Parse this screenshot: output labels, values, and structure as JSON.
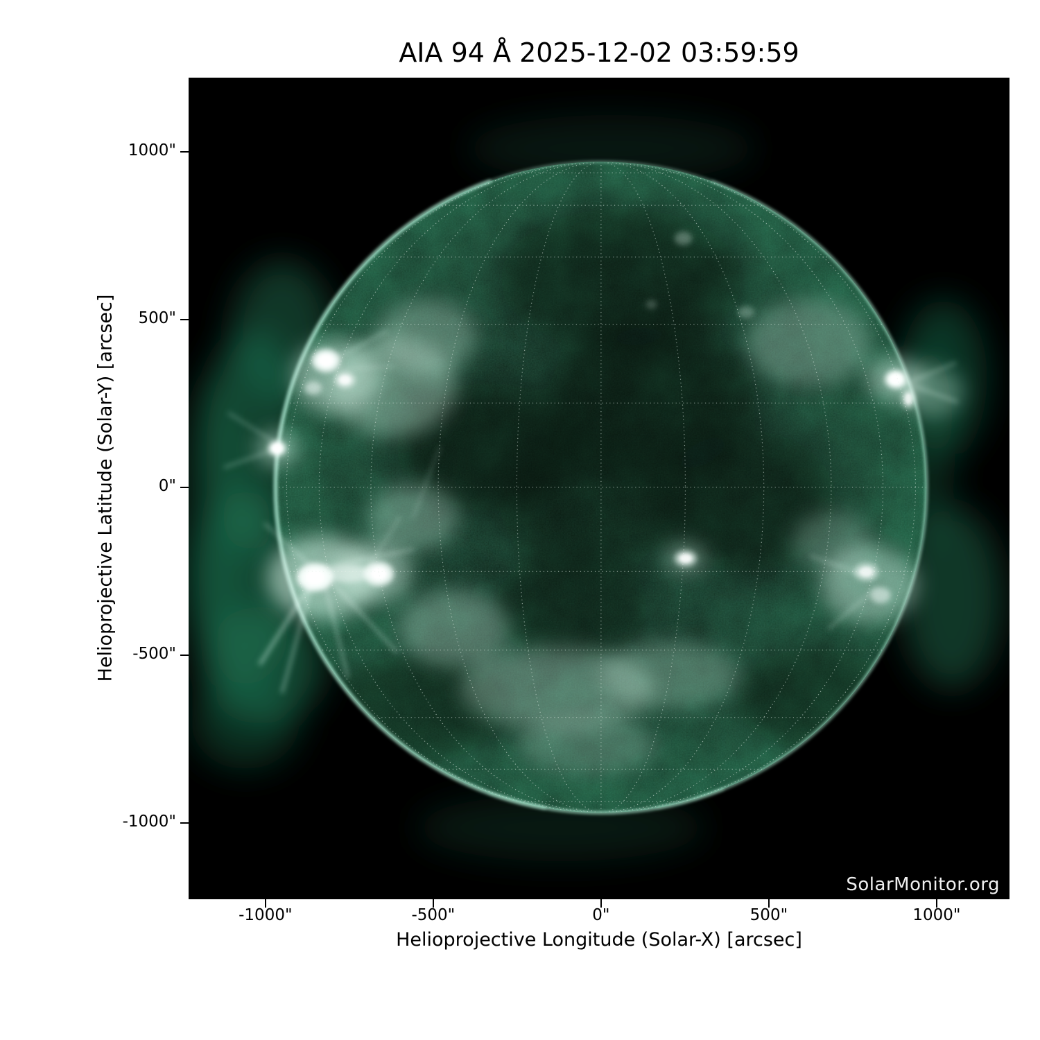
{
  "chart_data": {
    "type": "heatmap",
    "title": "AIA 94 Å 2025-12-02 03:59:59",
    "instrument": "AIA",
    "wavelength_label": "94 Å",
    "datetime": "2025-12-02 03:59:59",
    "xlabel": "Helioprojective Longitude (Solar-X) [arcsec]",
    "ylabel": "Helioprojective Latitude (Solar-Y) [arcsec]",
    "watermark": "SolarMonitor.org",
    "xlim": [
      -1229,
      1217
    ],
    "ylim": [
      -1228,
      1221
    ],
    "xticks": [
      {
        "value": -1000,
        "label": "-1000\""
      },
      {
        "value": -500,
        "label": "-500\""
      },
      {
        "value": 0,
        "label": "0\""
      },
      {
        "value": 500,
        "label": "500\""
      },
      {
        "value": 1000,
        "label": "1000\""
      }
    ],
    "yticks": [
      {
        "value": 1000,
        "label": "1000\""
      },
      {
        "value": 500,
        "label": "500\""
      },
      {
        "value": 0,
        "label": "0\""
      },
      {
        "value": -500,
        "label": "-500\""
      },
      {
        "value": -1000,
        "label": "-1000\""
      }
    ],
    "solar_radius_arcsec": 970,
    "disk_center_arcsec": [
      0,
      0
    ],
    "grid": {
      "spacing_deg": 15,
      "style": "dotted",
      "color": "#e8f2ec",
      "opacity": 0.55
    },
    "palette": {
      "background": "#000000",
      "disk_center": "#0b2117",
      "disk_mid": "#112c20",
      "disk_outer": "#17422e",
      "disk_limb": "#1e5a3f",
      "mottle_bright": "#2f8f66",
      "grain_bright": "#63c79b",
      "corona": "#1f7a57",
      "rim": "#9fd8c0",
      "halo": "#cdeede",
      "core": "#ffffff",
      "text": "#000000",
      "watermark_color": "#f0f0f0"
    },
    "corona_plumes": [
      [
        -1040,
        140,
        150,
        330,
        0.5
      ],
      [
        -1065,
        -300,
        165,
        290,
        0.55
      ],
      [
        -1010,
        -530,
        185,
        175,
        0.55
      ],
      [
        -950,
        460,
        150,
        215,
        0.45
      ],
      [
        -1145,
        -60,
        100,
        400,
        0.3
      ],
      [
        1020,
        330,
        130,
        230,
        0.42
      ],
      [
        1045,
        -330,
        150,
        270,
        0.45
      ],
      [
        965,
        120,
        90,
        300,
        0.3
      ],
      [
        30,
        1010,
        430,
        100,
        0.18
      ],
      [
        -120,
        -1015,
        430,
        100,
        0.2
      ],
      [
        -1060,
        -700,
        160,
        140,
        0.35
      ]
    ],
    "dark_patches": [
      [
        -340,
        120,
        270,
        190,
        0.5
      ],
      [
        150,
        260,
        310,
        230,
        0.5
      ],
      [
        430,
        -40,
        270,
        210,
        0.45
      ],
      [
        -90,
        -360,
        230,
        160,
        0.4
      ],
      [
        60,
        620,
        360,
        210,
        0.45
      ],
      [
        -550,
        -660,
        260,
        160,
        0.4
      ],
      [
        640,
        -630,
        240,
        150,
        0.4
      ],
      [
        -40,
        -60,
        260,
        190,
        0.35
      ]
    ],
    "bright_halos": [
      [
        -790,
        330,
        130,
        110,
        0.5
      ],
      [
        -620,
        300,
        190,
        150,
        0.35
      ],
      [
        -520,
        450,
        150,
        110,
        0.3
      ],
      [
        -830,
        -270,
        165,
        125,
        0.6
      ],
      [
        -680,
        -255,
        115,
        90,
        0.5
      ],
      [
        -965,
        115,
        62,
        52,
        0.5
      ],
      [
        878,
        322,
        85,
        65,
        0.5
      ],
      [
        985,
        285,
        95,
        75,
        0.32
      ],
      [
        800,
        -290,
        145,
        115,
        0.45
      ],
      [
        252,
        -212,
        62,
        46,
        0.38
      ],
      [
        -130,
        -600,
        290,
        125,
        0.3
      ],
      [
        205,
        -560,
        210,
        100,
        0.26
      ],
      [
        -40,
        -770,
        210,
        85,
        0.22
      ],
      [
        620,
        430,
        185,
        130,
        0.28
      ],
      [
        -440,
        -420,
        165,
        115,
        0.3
      ],
      [
        -560,
        -90,
        135,
        100,
        0.3
      ],
      [
        690,
        -160,
        120,
        90,
        0.22
      ]
    ],
    "bright_cores": [
      [
        -820,
        378,
        42,
        34,
        0.95
      ],
      [
        -763,
        320,
        30,
        24,
        0.7
      ],
      [
        -858,
        296,
        26,
        20,
        0.55
      ],
      [
        -965,
        116,
        26,
        22,
        1.0
      ],
      [
        -852,
        -268,
        54,
        42,
        1.0
      ],
      [
        -662,
        -258,
        44,
        36,
        0.92
      ],
      [
        -755,
        -258,
        70,
        26,
        0.5
      ],
      [
        878,
        322,
        32,
        27,
        1.0
      ],
      [
        916,
        264,
        20,
        30,
        0.6
      ],
      [
        790,
        -252,
        36,
        26,
        0.6
      ],
      [
        833,
        -322,
        30,
        24,
        0.55
      ],
      [
        252,
        -212,
        32,
        23,
        0.72
      ],
      [
        245,
        742,
        26,
        20,
        0.3
      ],
      [
        432,
        522,
        24,
        18,
        0.27
      ],
      [
        150,
        545,
        16,
        13,
        0.22
      ]
    ],
    "streaks": [
      [
        -852,
        -268,
        -1015,
        -525,
        5,
        0.5
      ],
      [
        -862,
        -290,
        -950,
        -610,
        4,
        0.45
      ],
      [
        -820,
        -300,
        -755,
        -565,
        4,
        0.4
      ],
      [
        -800,
        -285,
        -610,
        -490,
        4,
        0.4
      ],
      [
        -830,
        -240,
        -560,
        -185,
        4,
        0.35
      ],
      [
        -700,
        -250,
        -600,
        -90,
        3,
        0.3
      ],
      [
        -870,
        -230,
        -1000,
        -110,
        4,
        0.35
      ],
      [
        810,
        -270,
        625,
        -205,
        4,
        0.3
      ],
      [
        820,
        -300,
        680,
        -420,
        4,
        0.3
      ],
      [
        880,
        320,
        1060,
        255,
        4,
        0.35
      ],
      [
        885,
        300,
        1055,
        370,
        4,
        0.3
      ],
      [
        -815,
        370,
        -640,
        465,
        4,
        0.3
      ],
      [
        -830,
        350,
        -620,
        360,
        3,
        0.28
      ],
      [
        -965,
        115,
        -1120,
        60,
        4,
        0.3
      ],
      [
        -965,
        130,
        -1108,
        220,
        4,
        0.28
      ],
      [
        -560,
        -90,
        -480,
        120,
        3,
        0.25
      ]
    ],
    "rim_arcs": [
      [
        110,
        260,
        6,
        0.75
      ],
      [
        -80,
        70,
        4,
        0.55
      ],
      [
        250,
        292,
        5,
        0.6
      ]
    ]
  }
}
